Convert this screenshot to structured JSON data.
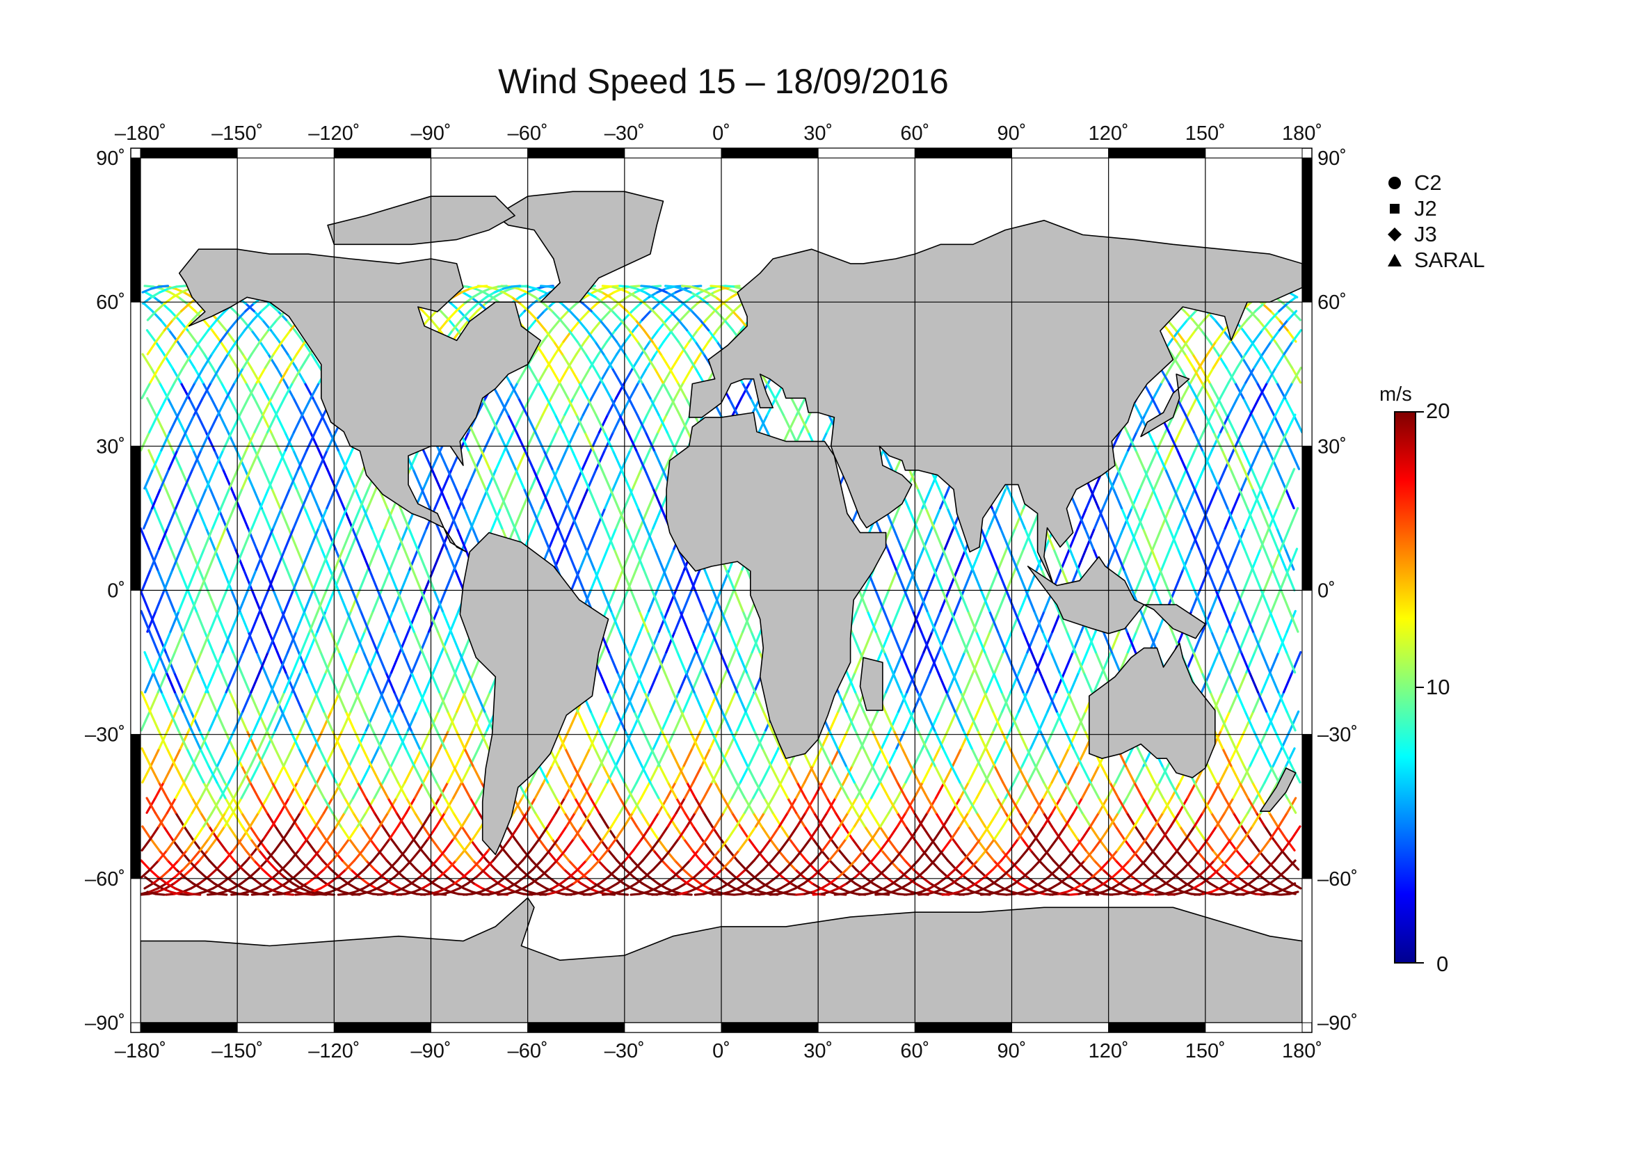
{
  "title": "Wind Speed 15 – 18/09/2016",
  "lon_ticks": [
    -180,
    -150,
    -120,
    -90,
    -60,
    -30,
    0,
    30,
    60,
    90,
    120,
    150,
    180
  ],
  "lat_ticks": [
    90,
    60,
    30,
    0,
    -30,
    -60,
    -90
  ],
  "tick_label_text": {
    "lon": [
      "–180˚",
      "–150˚",
      "–120˚",
      "–90˚",
      "–60˚",
      "–30˚",
      "0˚",
      "30˚",
      "60˚",
      "90˚",
      "120˚",
      "150˚",
      "180˚"
    ],
    "lat": [
      "90˚",
      "60˚",
      "30˚",
      "0˚",
      "–30˚",
      "–60˚",
      "–90˚"
    ]
  },
  "legend": [
    {
      "label": "C2",
      "symbol": "circle"
    },
    {
      "label": "J2",
      "symbol": "square"
    },
    {
      "label": "J3",
      "symbol": "diamond"
    },
    {
      "label": "SARAL",
      "symbol": "triangle"
    }
  ],
  "colorbar": {
    "unit": "m/s",
    "min": 0,
    "max": 20,
    "tick_labels": [
      "20",
      "10",
      "0"
    ],
    "colors": [
      "#00008f",
      "#0000ff",
      "#0080ff",
      "#00ffff",
      "#80ff80",
      "#ffff00",
      "#ff8000",
      "#ff0000",
      "#800000"
    ]
  },
  "colors": {
    "land": "#bebebe",
    "coast": "#000000",
    "grid": "#000000"
  }
}
